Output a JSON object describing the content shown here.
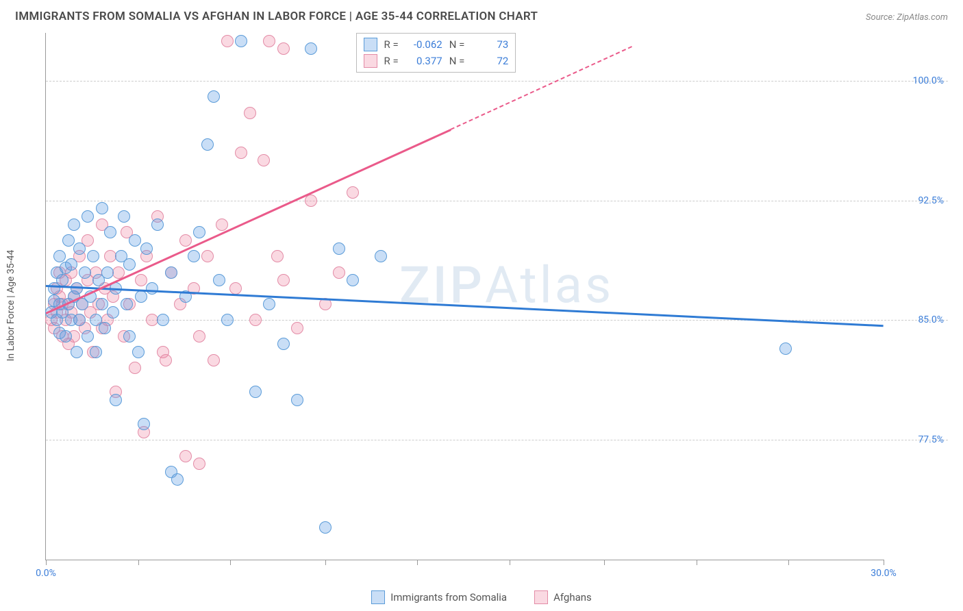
{
  "header": {
    "title": "IMMIGRANTS FROM SOMALIA VS AFGHAN IN LABOR FORCE | AGE 35-44 CORRELATION CHART",
    "source": "Source: ZipAtlas.com"
  },
  "axes": {
    "y_label": "In Labor Force | Age 35-44",
    "x_min": 0.0,
    "x_max": 30.0,
    "y_min": 70.0,
    "y_max": 103.0,
    "y_ticks": [
      77.5,
      85.0,
      92.5,
      100.0
    ],
    "y_tick_labels": [
      "77.5%",
      "85.0%",
      "92.5%",
      "100.0%"
    ],
    "x_ticks": [
      0,
      3.3,
      6.6,
      10,
      13.3,
      16.6,
      20,
      23.3,
      26.6,
      30
    ],
    "x_end_labels": {
      "start": "0.0%",
      "end": "30.0%"
    }
  },
  "colors": {
    "series1_fill": "rgba(100,160,230,0.35)",
    "series1_stroke": "#5a9bd8",
    "series1_line": "#2f7bd4",
    "series2_fill": "rgba(240,130,160,0.30)",
    "series2_stroke": "#e38ba6",
    "series2_line": "#ea5a8a",
    "grid": "#cccccc",
    "axis": "#999999",
    "tick_text": "#3b7dd8",
    "background": "#ffffff"
  },
  "marker": {
    "radius": 9,
    "stroke_width": 1.5
  },
  "watermark": "ZIPAtlas",
  "stats": {
    "rows": [
      {
        "swatch": "s1",
        "r_label": "R =",
        "r": "-0.062",
        "n_label": "N =",
        "n": "73"
      },
      {
        "swatch": "s2",
        "r_label": "R =",
        "r": "0.377",
        "n_label": "N =",
        "n": "72"
      }
    ]
  },
  "legend": {
    "items": [
      {
        "swatch": "s1",
        "label": "Immigrants from Somalia"
      },
      {
        "swatch": "s2",
        "label": "Afghans"
      }
    ]
  },
  "trend_lines": {
    "s1": {
      "x1": 0,
      "y1": 87.2,
      "x2": 30,
      "y2": 84.7,
      "color_key": "series1_line"
    },
    "s2_solid": {
      "x1": 0,
      "y1": 85.5,
      "x2": 14.5,
      "y2": 97.0,
      "color_key": "series2_line"
    },
    "s2_dashed": {
      "x1": 14.5,
      "y1": 97.0,
      "x2": 21.0,
      "y2": 102.2,
      "color_key": "series2_line"
    }
  },
  "series1": [
    [
      0.2,
      85.5
    ],
    [
      0.3,
      86.2
    ],
    [
      0.3,
      87.0
    ],
    [
      0.4,
      85.0
    ],
    [
      0.4,
      88.0
    ],
    [
      0.5,
      86.0
    ],
    [
      0.5,
      84.2
    ],
    [
      0.5,
      89.0
    ],
    [
      0.6,
      85.5
    ],
    [
      0.6,
      87.5
    ],
    [
      0.7,
      88.3
    ],
    [
      0.7,
      84.0
    ],
    [
      0.8,
      86.0
    ],
    [
      0.8,
      90.0
    ],
    [
      0.9,
      85.0
    ],
    [
      0.9,
      88.5
    ],
    [
      1.0,
      86.5
    ],
    [
      1.0,
      91.0
    ],
    [
      1.1,
      83.0
    ],
    [
      1.1,
      87.0
    ],
    [
      1.2,
      89.5
    ],
    [
      1.2,
      85.0
    ],
    [
      1.3,
      86.0
    ],
    [
      1.4,
      88.0
    ],
    [
      1.5,
      84.0
    ],
    [
      1.5,
      91.5
    ],
    [
      1.6,
      86.5
    ],
    [
      1.7,
      89.0
    ],
    [
      1.8,
      85.0
    ],
    [
      1.8,
      83.0
    ],
    [
      1.9,
      87.5
    ],
    [
      2.0,
      92.0
    ],
    [
      2.0,
      86.0
    ],
    [
      2.1,
      84.5
    ],
    [
      2.2,
      88.0
    ],
    [
      2.3,
      90.5
    ],
    [
      2.4,
      85.5
    ],
    [
      2.5,
      87.0
    ],
    [
      2.5,
      80.0
    ],
    [
      2.7,
      89.0
    ],
    [
      2.8,
      91.5
    ],
    [
      2.9,
      86.0
    ],
    [
      3.0,
      88.5
    ],
    [
      3.0,
      84.0
    ],
    [
      3.2,
      90.0
    ],
    [
      3.4,
      86.5
    ],
    [
      3.5,
      78.5
    ],
    [
      3.6,
      89.5
    ],
    [
      3.8,
      87.0
    ],
    [
      4.0,
      91.0
    ],
    [
      4.2,
      85.0
    ],
    [
      4.5,
      88.0
    ],
    [
      4.5,
      75.5
    ],
    [
      4.7,
      75.0
    ],
    [
      5.0,
      86.5
    ],
    [
      5.3,
      89.0
    ],
    [
      5.5,
      90.5
    ],
    [
      5.8,
      96.0
    ],
    [
      6.0,
      99.0
    ],
    [
      6.2,
      87.5
    ],
    [
      6.5,
      85.0
    ],
    [
      7.0,
      102.5
    ],
    [
      7.5,
      80.5
    ],
    [
      8.0,
      86.0
    ],
    [
      8.5,
      83.5
    ],
    [
      9.0,
      80.0
    ],
    [
      9.5,
      102.0
    ],
    [
      10.0,
      72.0
    ],
    [
      10.5,
      89.5
    ],
    [
      11.0,
      87.5
    ],
    [
      12.0,
      89.0
    ],
    [
      26.5,
      83.2
    ],
    [
      3.3,
      83.0
    ]
  ],
  "series2": [
    [
      0.2,
      85.0
    ],
    [
      0.3,
      86.0
    ],
    [
      0.3,
      84.5
    ],
    [
      0.4,
      87.0
    ],
    [
      0.4,
      85.5
    ],
    [
      0.5,
      86.5
    ],
    [
      0.5,
      88.0
    ],
    [
      0.6,
      84.0
    ],
    [
      0.6,
      86.0
    ],
    [
      0.7,
      85.0
    ],
    [
      0.7,
      87.5
    ],
    [
      0.8,
      86.0
    ],
    [
      0.8,
      83.5
    ],
    [
      0.9,
      85.5
    ],
    [
      0.9,
      88.0
    ],
    [
      1.0,
      86.5
    ],
    [
      1.0,
      84.0
    ],
    [
      1.1,
      87.0
    ],
    [
      1.2,
      85.0
    ],
    [
      1.2,
      89.0
    ],
    [
      1.3,
      86.0
    ],
    [
      1.4,
      84.5
    ],
    [
      1.5,
      87.5
    ],
    [
      1.5,
      90.0
    ],
    [
      1.6,
      85.5
    ],
    [
      1.7,
      83.0
    ],
    [
      1.8,
      88.0
    ],
    [
      1.9,
      86.0
    ],
    [
      2.0,
      84.5
    ],
    [
      2.0,
      91.0
    ],
    [
      2.1,
      87.0
    ],
    [
      2.2,
      85.0
    ],
    [
      2.3,
      89.0
    ],
    [
      2.4,
      86.5
    ],
    [
      2.5,
      80.5
    ],
    [
      2.6,
      88.0
    ],
    [
      2.8,
      84.0
    ],
    [
      2.9,
      90.5
    ],
    [
      3.0,
      86.0
    ],
    [
      3.2,
      82.0
    ],
    [
      3.4,
      87.5
    ],
    [
      3.5,
      78.0
    ],
    [
      3.6,
      89.0
    ],
    [
      3.8,
      85.0
    ],
    [
      4.0,
      91.5
    ],
    [
      4.2,
      83.0
    ],
    [
      4.3,
      82.5
    ],
    [
      4.5,
      88.0
    ],
    [
      4.8,
      86.0
    ],
    [
      5.0,
      76.5
    ],
    [
      5.0,
      90.0
    ],
    [
      5.3,
      87.0
    ],
    [
      5.5,
      76.0
    ],
    [
      5.5,
      84.0
    ],
    [
      5.8,
      89.0
    ],
    [
      6.0,
      82.5
    ],
    [
      6.3,
      91.0
    ],
    [
      6.5,
      102.5
    ],
    [
      6.8,
      87.0
    ],
    [
      7.0,
      95.5
    ],
    [
      7.3,
      98.0
    ],
    [
      7.5,
      85.0
    ],
    [
      7.8,
      95.0
    ],
    [
      8.0,
      102.5
    ],
    [
      8.3,
      89.0
    ],
    [
      8.5,
      87.5
    ],
    [
      8.5,
      102.0
    ],
    [
      9.0,
      84.5
    ],
    [
      9.5,
      92.5
    ],
    [
      10.0,
      86.0
    ],
    [
      10.5,
      88.0
    ],
    [
      11.0,
      93.0
    ]
  ]
}
